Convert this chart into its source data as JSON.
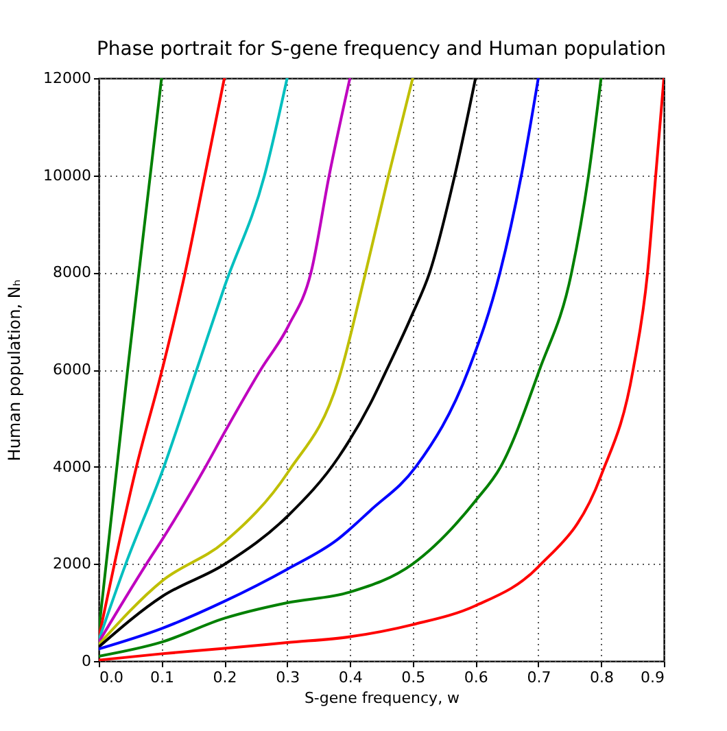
{
  "chart_data": {
    "type": "line",
    "title": "Phase portrait for S-gene frequency and Human population",
    "xlabel": "S-gene frequency, w",
    "ylabel": "Human population, Nₕ",
    "xlim": [
      0,
      0.9
    ],
    "ylim": [
      0,
      12000
    ],
    "xticks": [
      {
        "value": 0,
        "label": "0.0"
      },
      0.1,
      0.2,
      0.3,
      0.4,
      0.5,
      0.6,
      0.7,
      0.8,
      0.9
    ],
    "yticks": [
      0,
      2000,
      4000,
      6000,
      8000,
      10000,
      12000
    ],
    "grid": true,
    "series": [
      {
        "color": "#008000",
        "x": [
          0,
          0.046,
          0.082,
          0.1
        ],
        "values": [
          620,
          6000,
          10000,
          12000
        ]
      },
      {
        "color": "#ff0000",
        "x": [
          0,
          0.025,
          0.06,
          0.101,
          0.1376,
          0.169,
          0.2
        ],
        "values": [
          480,
          2000,
          4000,
          6000,
          8000,
          10000,
          12000
        ]
      },
      {
        "color": "#00bfbf",
        "x": [
          0,
          0.043,
          0.101,
          0.156,
          0.2,
          0.264,
          0.3
        ],
        "values": [
          430,
          2000,
          3900,
          6000,
          7700,
          10000,
          12000
        ]
      },
      {
        "color": "#bf00bf",
        "x": [
          0,
          0.076,
          0.101,
          0.17,
          0.2,
          0.258,
          0.302,
          0.338,
          0.367,
          0.4
        ],
        "values": [
          390,
          2000,
          2500,
          4000,
          4700,
          6000,
          6900,
          8000,
          10000,
          12000
        ]
      },
      {
        "color": "#bfbf00",
        "x": [
          0,
          0.101,
          0.2,
          0.302,
          0.382,
          0.425,
          0.4616,
          0.5
        ],
        "values": [
          340,
          1650,
          2450,
          3900,
          5800,
          8000,
          10000,
          12000
        ]
      },
      {
        "color": "#000000",
        "x": [
          0,
          0.101,
          0.2,
          0.302,
          0.382,
          0.4325,
          0.455,
          0.498,
          0.527,
          0.567,
          0.6
        ],
        "values": [
          290,
          1330,
          1990,
          3000,
          4200,
          5300,
          5900,
          7100,
          8000,
          10000,
          12000
        ]
      },
      {
        "color": "#0000ff",
        "x": [
          0,
          0.1,
          0.2,
          0.3,
          0.38,
          0.4325,
          0.505,
          0.589,
          0.639,
          0.673,
          0.7
        ],
        "values": [
          250,
          670,
          1230,
          1890,
          2500,
          3100,
          4000,
          6000,
          8000,
          10000,
          12000
        ]
      },
      {
        "color": "#008000",
        "x": [
          0,
          0.1,
          0.2,
          0.3,
          0.4,
          0.5,
          0.6,
          0.64,
          0.702,
          0.753,
          0.78,
          0.8
        ],
        "values": [
          100,
          390,
          880,
          1200,
          1420,
          2000,
          3300,
          4000,
          6000,
          8000,
          10000,
          12000
        ]
      },
      {
        "color": "#ff0000",
        "x": [
          0,
          0.1,
          0.2,
          0.3,
          0.4,
          0.5,
          0.6,
          0.7,
          0.8,
          0.851,
          0.874,
          0.887,
          0.9
        ],
        "values": [
          20,
          150,
          260,
          380,
          500,
          750,
          1140,
          1940,
          3820,
          6000,
          8000,
          10000,
          12000
        ]
      }
    ]
  }
}
